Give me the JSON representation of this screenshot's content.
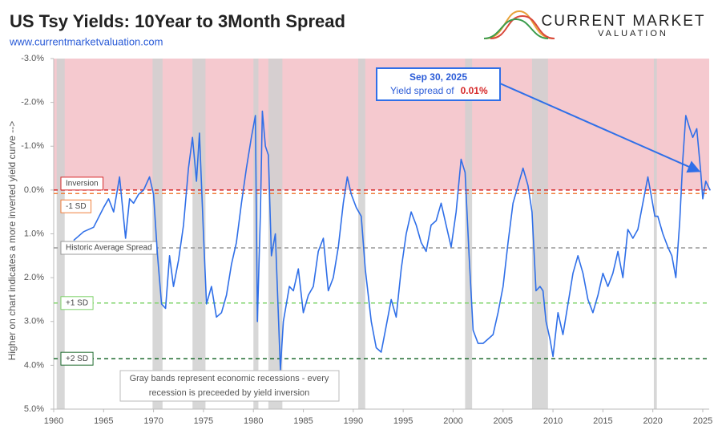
{
  "chart_data": {
    "type": "line",
    "title": "US Tsy Yields: 10Year to 3Month Spread",
    "subtitle": "www.currentmarketvaluation.com",
    "logo": [
      "CURRENT MARKET",
      "VALUATION"
    ],
    "y_label": "Higher on chart indicates a more inverted yield curve -->",
    "inverted_y": true,
    "inverted_region_color": "#f5c9cf",
    "xlim": [
      1960,
      2025.5
    ],
    "xticks": [
      1960,
      1965,
      1970,
      1975,
      1980,
      1985,
      1990,
      1995,
      2000,
      2005,
      2010,
      2015,
      2020,
      2025
    ],
    "ylim": [
      -3,
      5
    ],
    "yticks": [
      {
        "value": -3,
        "label": "-3.0%"
      },
      {
        "value": -2,
        "label": "-2.0%"
      },
      {
        "value": -1,
        "label": "-1.0%"
      },
      {
        "value": 0,
        "label": "0.0%"
      },
      {
        "value": 1,
        "label": "1.0%"
      },
      {
        "value": 2,
        "label": "2.0%"
      },
      {
        "value": 3,
        "label": "3.0%"
      },
      {
        "value": 4,
        "label": "4.0%"
      },
      {
        "value": 5,
        "label": "5.0%"
      }
    ],
    "recessions": [
      [
        1960.3,
        1961.1
      ],
      [
        1969.9,
        1970.9
      ],
      [
        1973.9,
        1975.2
      ],
      [
        1980.0,
        1980.5
      ],
      [
        1981.5,
        1982.9
      ],
      [
        1990.5,
        1991.2
      ],
      [
        2001.2,
        2001.9
      ],
      [
        2007.9,
        2009.5
      ],
      [
        2020.1,
        2020.4
      ]
    ],
    "recession_color": "#d0d0d0",
    "reference_lines": [
      {
        "name": "Inversion",
        "value": 0,
        "color": "#d62728"
      },
      {
        "name": "-1 SD",
        "value": 0.08,
        "color": "#f07f3c"
      },
      {
        "name": "Historic Average Spread",
        "value": 1.32,
        "color": "#999999"
      },
      {
        "name": "+1 SD",
        "value": 2.58,
        "color": "#7fd36a"
      },
      {
        "name": "+2 SD",
        "value": 3.85,
        "color": "#1e6b2e"
      }
    ],
    "series": [
      {
        "name": "10Y-3M spread",
        "color": "#2f6fe8",
        "x": [
          1962.0,
          1963.0,
          1964.0,
          1965.0,
          1965.5,
          1966.0,
          1966.6,
          1967.2,
          1967.6,
          1968.0,
          1968.5,
          1969.0,
          1969.6,
          1970.0,
          1970.4,
          1970.8,
          1971.2,
          1971.6,
          1972.0,
          1972.5,
          1973.0,
          1973.5,
          1973.9,
          1974.3,
          1974.6,
          1975.0,
          1975.3,
          1975.8,
          1976.3,
          1976.8,
          1977.3,
          1977.8,
          1978.3,
          1978.8,
          1979.3,
          1979.8,
          1980.2,
          1980.4,
          1980.7,
          1980.9,
          1981.2,
          1981.5,
          1981.8,
          1982.2,
          1982.7,
          1983.0,
          1983.6,
          1984.0,
          1984.5,
          1985.0,
          1985.5,
          1986.0,
          1986.5,
          1987.0,
          1987.5,
          1988.0,
          1988.5,
          1989.0,
          1989.4,
          1989.8,
          1990.3,
          1990.8,
          1991.2,
          1991.8,
          1992.3,
          1992.8,
          1993.3,
          1993.8,
          1994.3,
          1994.8,
          1995.3,
          1995.8,
          1996.3,
          1996.8,
          1997.3,
          1997.8,
          1998.3,
          1998.8,
          1999.3,
          1999.8,
          2000.3,
          2000.8,
          2001.2,
          2001.6,
          2002.0,
          2002.5,
          2003.0,
          2003.5,
          2004.0,
          2004.5,
          2005.0,
          2005.5,
          2006.0,
          2006.5,
          2007.0,
          2007.5,
          2007.9,
          2008.3,
          2008.7,
          2009.0,
          2009.3,
          2009.7,
          2010.0,
          2010.5,
          2011.0,
          2011.5,
          2012.0,
          2012.5,
          2013.0,
          2013.5,
          2014.0,
          2014.5,
          2015.0,
          2015.5,
          2016.0,
          2016.5,
          2017.0,
          2017.5,
          2018.0,
          2018.5,
          2019.0,
          2019.5,
          2019.9,
          2020.2,
          2020.5,
          2021.0,
          2021.5,
          2021.9,
          2022.3,
          2022.7,
          2023.0,
          2023.3,
          2023.7,
          2024.0,
          2024.4,
          2024.8,
          2025.0,
          2025.3,
          2025.75
        ],
        "values": [
          1.15,
          0.95,
          0.85,
          0.4,
          0.2,
          0.5,
          -0.3,
          1.1,
          0.2,
          0.3,
          0.1,
          0.0,
          -0.3,
          0.1,
          1.5,
          2.6,
          2.7,
          1.5,
          2.2,
          1.6,
          0.8,
          -0.5,
          -1.2,
          -0.2,
          -1.3,
          1.0,
          2.6,
          2.2,
          2.9,
          2.8,
          2.4,
          1.7,
          1.2,
          0.3,
          -0.5,
          -1.2,
          -1.7,
          3.0,
          0.5,
          -1.8,
          -1.0,
          -0.8,
          1.5,
          1.0,
          4.1,
          3.0,
          2.2,
          2.3,
          1.8,
          2.8,
          2.4,
          2.2,
          1.4,
          1.1,
          2.3,
          2.0,
          1.3,
          0.3,
          -0.3,
          0.1,
          0.4,
          0.6,
          1.8,
          3.0,
          3.6,
          3.7,
          3.1,
          2.5,
          2.9,
          1.8,
          1.0,
          0.5,
          0.8,
          1.2,
          1.4,
          0.8,
          0.7,
          0.3,
          0.8,
          1.3,
          0.5,
          -0.7,
          -0.4,
          1.5,
          3.2,
          3.5,
          3.5,
          3.4,
          3.3,
          2.8,
          2.2,
          1.2,
          0.3,
          -0.1,
          -0.5,
          -0.1,
          0.5,
          2.3,
          2.2,
          2.3,
          3.0,
          3.4,
          3.8,
          2.8,
          3.3,
          2.6,
          1.9,
          1.5,
          1.9,
          2.5,
          2.8,
          2.4,
          1.9,
          2.2,
          1.9,
          1.4,
          2.0,
          0.9,
          1.1,
          0.9,
          0.3,
          -0.3,
          0.2,
          0.6,
          0.6,
          1.0,
          1.3,
          1.5,
          2.0,
          0.7,
          -0.7,
          -1.7,
          -1.4,
          -1.2,
          -1.4,
          -0.4,
          0.2,
          -0.2,
          0.01
        ]
      }
    ],
    "callout": {
      "date": "Sep 30, 2025",
      "text": "Yield spread of",
      "value": 0.01,
      "value_label": "0.01%"
    },
    "note": [
      "Gray bands represent economic recessions - every",
      "recession is preceeded by yield inversion"
    ]
  }
}
